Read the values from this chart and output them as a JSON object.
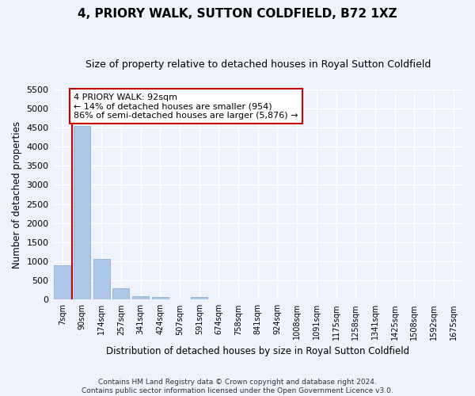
{
  "title": "4, PRIORY WALK, SUTTON COLDFIELD, B72 1XZ",
  "subtitle": "Size of property relative to detached houses in Royal Sutton Coldfield",
  "xlabel": "Distribution of detached houses by size in Royal Sutton Coldfield",
  "ylabel": "Number of detached properties",
  "footer_line1": "Contains HM Land Registry data © Crown copyright and database right 2024.",
  "footer_line2": "Contains public sector information licensed under the Open Government Licence v3.0.",
  "categories": [
    "7sqm",
    "90sqm",
    "174sqm",
    "257sqm",
    "341sqm",
    "424sqm",
    "507sqm",
    "591sqm",
    "674sqm",
    "758sqm",
    "841sqm",
    "924sqm",
    "1008sqm",
    "1091sqm",
    "1175sqm",
    "1258sqm",
    "1341sqm",
    "1425sqm",
    "1508sqm",
    "1592sqm",
    "1675sqm"
  ],
  "bar_values": [
    900,
    4550,
    1060,
    295,
    80,
    70,
    0,
    60,
    0,
    0,
    0,
    0,
    0,
    0,
    0,
    0,
    0,
    0,
    0,
    0,
    0
  ],
  "bar_color": "#aec6e8",
  "bar_edge_color": "#7aaad0",
  "ylim": [
    0,
    5500
  ],
  "yticks": [
    0,
    500,
    1000,
    1500,
    2000,
    2500,
    3000,
    3500,
    4000,
    4500,
    5000,
    5500
  ],
  "property_line_x": 0.5,
  "property_line_color": "#cc0000",
  "annotation_text": "4 PRIORY WALK: 92sqm\n← 14% of detached houses are smaller (954)\n86% of semi-detached houses are larger (5,876) →",
  "annotation_box_color": "#ffffff",
  "annotation_box_edgecolor": "#cc0000",
  "bg_color": "#eef2fa",
  "plot_bg_color": "#eef2fa",
  "grid_color": "#ffffff",
  "title_fontsize": 11,
  "subtitle_fontsize": 9,
  "ylabel_text": "Number of detached properties"
}
